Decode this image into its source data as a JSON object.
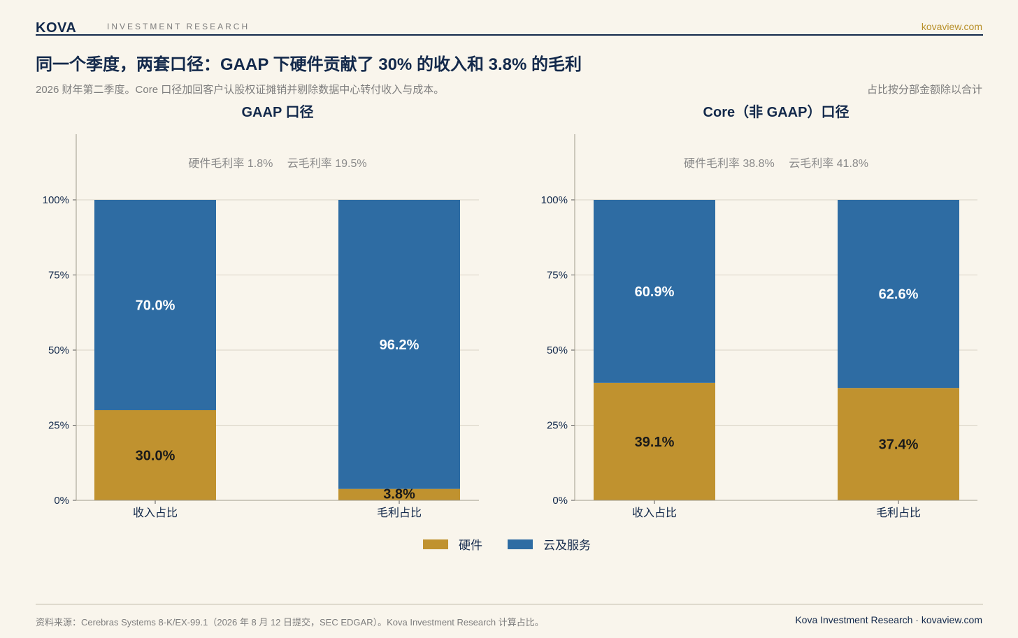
{
  "header": {
    "brand": "KOVA",
    "brand_sub": "INVESTMENT RESEARCH",
    "site": "kovaview.com"
  },
  "headline": "同一个季度，两套口径：GAAP 下硬件贡献了 30% 的收入和 3.8% 的毛利",
  "subtitle": "2026 财年第二季度。Core 口径加回客户认股权证摊销并剔除数据中心转付收入与成本。",
  "note": "占比按分部金额除以合计",
  "colors": {
    "hardware": "#c0922f",
    "cloud": "#2e6ca3",
    "text": "#13294b",
    "grid": "#d9d3c6",
    "background": "#f9f5ec"
  },
  "legend": {
    "hardware": "硬件",
    "cloud": "云及服务"
  },
  "chart_data": [
    {
      "type": "bar",
      "stacked": true,
      "title": "GAAP 口径",
      "annotation": "硬件毛利率 1.8%　 云毛利率 19.5%",
      "categories": [
        "收入占比",
        "毛利占比"
      ],
      "series": [
        {
          "name": "硬件",
          "values": [
            30.0,
            3.8
          ],
          "labels": [
            "30.0%",
            "3.8%"
          ]
        },
        {
          "name": "云及服务",
          "values": [
            70.0,
            96.2
          ],
          "labels": [
            "70.0%",
            "96.2%"
          ]
        }
      ],
      "yticks": [
        "0%",
        "25%",
        "50%",
        "75%",
        "100%"
      ],
      "ylim": [
        0,
        100
      ],
      "grid": true
    },
    {
      "type": "bar",
      "stacked": true,
      "title": "Core（非 GAAP）口径",
      "annotation": "硬件毛利率 38.8%　 云毛利率 41.8%",
      "categories": [
        "收入占比",
        "毛利占比"
      ],
      "series": [
        {
          "name": "硬件",
          "values": [
            39.1,
            37.4
          ],
          "labels": [
            "39.1%",
            "37.4%"
          ]
        },
        {
          "name": "云及服务",
          "values": [
            60.9,
            62.6
          ],
          "labels": [
            "60.9%",
            "62.6%"
          ]
        }
      ],
      "yticks": [
        "0%",
        "25%",
        "50%",
        "75%",
        "100%"
      ],
      "ylim": [
        0,
        100
      ],
      "grid": true
    }
  ],
  "footer": {
    "source": "资料来源：Cerebras Systems 8-K/EX-99.1（2026 年 8 月 12 日提交，SEC EDGAR）。Kova Investment Research 计算占比。",
    "credit": "Kova Investment Research · kovaview.com"
  }
}
